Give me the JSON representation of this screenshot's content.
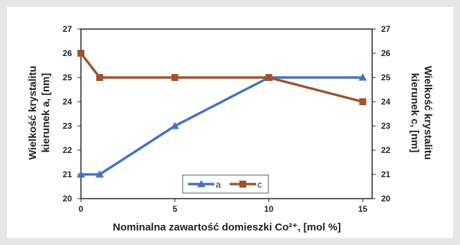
{
  "chart_data": {
    "type": "line",
    "x": [
      0,
      1,
      5,
      10,
      15
    ],
    "series": [
      {
        "name": "a",
        "axis": "left",
        "values": [
          21,
          21,
          23,
          25,
          25
        ],
        "color": "#4472c4",
        "marker": "triangle"
      },
      {
        "name": "c",
        "axis": "right",
        "values": [
          26,
          25,
          25,
          25,
          24
        ],
        "color": "#a0522d",
        "marker": "square"
      }
    ],
    "xlabel": "Nominalna zawartość domieszki Co²⁺, [mol %]",
    "ylabel_left": [
      "Wielkość krystalitu",
      "kierunek a, [nm]"
    ],
    "ylabel_right": [
      "Wielkość krystalitu",
      "kierunek c, [nm]"
    ],
    "xticks": [
      0,
      5,
      10,
      15
    ],
    "yticks": [
      20,
      21,
      22,
      23,
      24,
      25,
      26,
      27
    ],
    "xlim": [
      0,
      15.5
    ],
    "ylim_left": [
      20,
      27
    ],
    "ylim_right": [
      20,
      27
    ],
    "grid": false,
    "legend_position": "bottom-center"
  }
}
